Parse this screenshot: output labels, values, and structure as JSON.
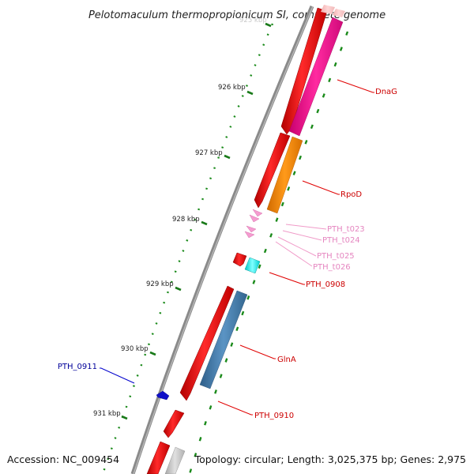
{
  "title": "Pelotomaculum thermopropionicum SI, complete genome",
  "accession": "Accession: NC_009454",
  "summary": "Topology: circular; Length: 3,025,375 bp; Genes: 2,975",
  "ticks": [
    {
      "label": "925 kbp"
    },
    {
      "label": "926 kbp"
    },
    {
      "label": "927 kbp"
    },
    {
      "label": "928 kbp"
    },
    {
      "label": "929 kbp"
    },
    {
      "label": "930 kbp"
    },
    {
      "label": "931 kbp"
    }
  ],
  "genes": [
    {
      "label": "DnaG",
      "color": "#ff1493"
    },
    {
      "label": "RpoD",
      "color": "#ff8c00"
    },
    {
      "label": "PTH_t023",
      "color": "#f08ccc"
    },
    {
      "label": "PTH_t024",
      "color": "#f08ccc"
    },
    {
      "label": "PTH_t025",
      "color": "#f08ccc"
    },
    {
      "label": "PTH_t026",
      "color": "#f08ccc"
    },
    {
      "label": "PTH_0908",
      "color": "#cc0000"
    },
    {
      "label": "GlnA",
      "color": "#cc0000"
    },
    {
      "label": "PTH_0910",
      "color": "#cc0000"
    },
    {
      "label": "PTH_0911",
      "color": "#000099"
    }
  ],
  "colors": {
    "backbone": "#808080",
    "cds": "#ff0000",
    "tick": "#006400",
    "cyan_feature": "#00ffff",
    "steelblue_feature": "#4682b4",
    "pink_feature": "#ff1493",
    "orange_feature": "#ff8c00",
    "grey_feature": "#c8c8c8"
  }
}
